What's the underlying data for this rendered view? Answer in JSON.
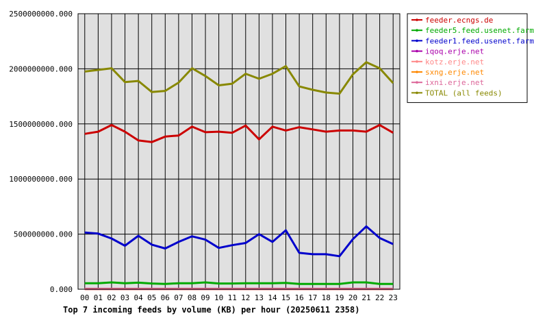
{
  "chart_data": {
    "type": "line",
    "title": "Top 7 incoming feeds by volume (KB) per hour (20250611 2358)",
    "xlabel": "",
    "ylabel": "",
    "x": [
      "00",
      "01",
      "02",
      "03",
      "04",
      "05",
      "06",
      "07",
      "08",
      "09",
      "10",
      "11",
      "12",
      "13",
      "14",
      "15",
      "16",
      "17",
      "18",
      "19",
      "20",
      "21",
      "22",
      "23"
    ],
    "y_ticks": [
      "0.000",
      "500000000.000",
      "1000000000.000",
      "1500000000.000",
      "2000000000.000",
      "2500000000.000"
    ],
    "ylim": [
      0,
      2500000000
    ],
    "grid": true,
    "legend_position": "right",
    "series": [
      {
        "name": "feeder.ecngs.de",
        "color": "#cc0000",
        "values": [
          1410000000,
          1430000000,
          1490000000,
          1430000000,
          1350000000,
          1335000000,
          1385000000,
          1395000000,
          1475000000,
          1425000000,
          1430000000,
          1420000000,
          1485000000,
          1360000000,
          1475000000,
          1440000000,
          1470000000,
          1450000000,
          1430000000,
          1440000000,
          1440000000,
          1430000000,
          1490000000,
          1420000000
        ]
      },
      {
        "name": "feeder5.feed.usenet.farm",
        "color": "#00aa00",
        "values": [
          55000000,
          55000000,
          62000000,
          55000000,
          60000000,
          52000000,
          48000000,
          55000000,
          55000000,
          62000000,
          52000000,
          52000000,
          55000000,
          55000000,
          55000000,
          58000000,
          48000000,
          48000000,
          48000000,
          48000000,
          62000000,
          62000000,
          48000000,
          48000000
        ]
      },
      {
        "name": "feeder1.feed.usenet.farm",
        "color": "#0000cc",
        "values": [
          515000000,
          505000000,
          460000000,
          395000000,
          485000000,
          405000000,
          370000000,
          430000000,
          480000000,
          450000000,
          375000000,
          400000000,
          420000000,
          500000000,
          430000000,
          535000000,
          330000000,
          318000000,
          318000000,
          300000000,
          455000000,
          570000000,
          465000000,
          410000000
        ]
      },
      {
        "name": "iqoq.erje.net",
        "color": "#aa00aa",
        "values": [
          4000000,
          4000000,
          4000000,
          4000000,
          4000000,
          4000000,
          4000000,
          4000000,
          4000000,
          4000000,
          4000000,
          4000000,
          4000000,
          4000000,
          4000000,
          4000000,
          4000000,
          4000000,
          4000000,
          4000000,
          4000000,
          4000000,
          4000000,
          4000000
        ]
      },
      {
        "name": "kotz.erje.net",
        "color": "#ff8888",
        "values": [
          3000000,
          3000000,
          3000000,
          3000000,
          3000000,
          3000000,
          3000000,
          3000000,
          3000000,
          3000000,
          3000000,
          3000000,
          3000000,
          3000000,
          3000000,
          3000000,
          3000000,
          3000000,
          3000000,
          3000000,
          3000000,
          3000000,
          3000000,
          3000000
        ]
      },
      {
        "name": "sxng.erje.net",
        "color": "#ff8800",
        "values": [
          2000000,
          2000000,
          2000000,
          2000000,
          2000000,
          2000000,
          2000000,
          2000000,
          2000000,
          2000000,
          2000000,
          2000000,
          2000000,
          2000000,
          2000000,
          2000000,
          2000000,
          2000000,
          2000000,
          2000000,
          2000000,
          2000000,
          2000000,
          2000000
        ]
      },
      {
        "name": "ixni.erje.net",
        "color": "#dd6699",
        "values": [
          1000000,
          1000000,
          1000000,
          1000000,
          1000000,
          1000000,
          1000000,
          1000000,
          1000000,
          1000000,
          1000000,
          1000000,
          1000000,
          1000000,
          1000000,
          1000000,
          1000000,
          1000000,
          1000000,
          1000000,
          1000000,
          1000000,
          1000000,
          1000000
        ]
      },
      {
        "name": "TOTAL (all feeds)",
        "color": "#888800",
        "values": [
          1975000000,
          1990000000,
          2005000000,
          1880000000,
          1890000000,
          1790000000,
          1800000000,
          1875000000,
          2005000000,
          1935000000,
          1850000000,
          1865000000,
          1955000000,
          1910000000,
          1955000000,
          2025000000,
          1840000000,
          1810000000,
          1785000000,
          1775000000,
          1950000000,
          2060000000,
          2005000000,
          1870000000
        ]
      }
    ]
  }
}
